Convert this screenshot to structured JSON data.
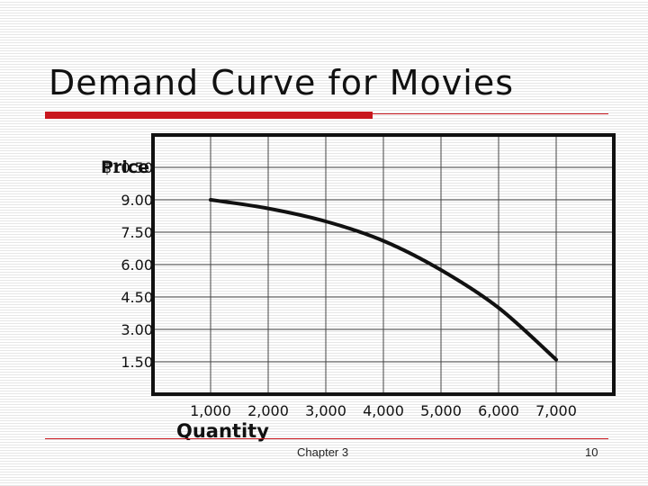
{
  "slide": {
    "title": "Demand Curve for Movies",
    "footer_chapter": "Chapter 3",
    "footer_page": "10",
    "accent_color": "#c8161d"
  },
  "chart_data": {
    "type": "line",
    "title": "",
    "xlabel": "Quantity",
    "ylabel": "Price",
    "x_ticks": [
      "1,000",
      "2,000",
      "3,000",
      "4,000",
      "5,000",
      "6,000",
      "7,000"
    ],
    "y_ticks": [
      "$10.50",
      "9.00",
      "7.50",
      "6.00",
      "4.50",
      "3.00",
      "1.50"
    ],
    "series": [
      {
        "x": [
          1000,
          2000,
          3000,
          4000,
          5000,
          6000,
          7000
        ],
        "y": [
          9.0,
          8.6,
          8.0,
          7.1,
          5.75,
          4.0,
          1.6
        ]
      }
    ],
    "xlim": [
      0,
      8000
    ],
    "ylim": [
      0,
      12
    ],
    "grid": true
  }
}
